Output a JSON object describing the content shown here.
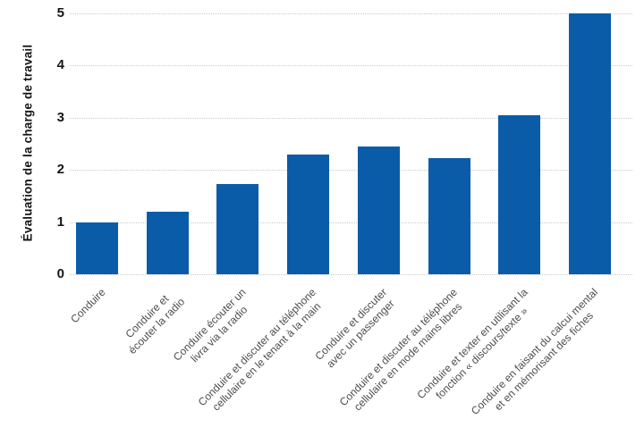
{
  "chart_data": {
    "type": "bar",
    "title": "",
    "xlabel": "",
    "ylabel": "Évaluation de la charge de travail",
    "ylim": [
      0,
      5
    ],
    "yticks": [
      0,
      1,
      2,
      3,
      4,
      5
    ],
    "grid": "horizontal dotted gridlines at each integer tick, no axis spine",
    "legend": "none",
    "categories": [
      "Conduire",
      "Conduire et écouter la radio",
      "Conduire écouter un livra via la radio",
      "Conduire et discuter au téléphone cellulaire en le tenant à la main",
      "Conduire et discuter avec un passenger",
      "Conduire et discuter au téléphone cellulaire en mode mains libres",
      "Conduire et texter en utilisant la fonction « discours/texte »",
      "Conduire en faisant du calcui mental et en mémorisant des fiches"
    ],
    "categories_wrapped": [
      "Conduire",
      "Conduire et\nécouter la radio",
      "Conduire écouter un\nlivra via la radio",
      "Conduire et discuter au téléphone\ncellulaire en le tenant à la main",
      "Conduire et discuter\navec un passenger",
      "Conduire et discuter au téléphone\ncellulaire en mode mains libres",
      "Conduire et texter en utilisant la\nfonction « discours/texte »",
      "Conduire en faisant du calcui mental\net en mémorisant des fiches"
    ],
    "values": [
      1.0,
      1.2,
      1.73,
      2.3,
      2.45,
      2.23,
      3.05,
      5.0
    ]
  },
  "colors": {
    "bar": "#0b5ca8",
    "grid": "#c9c9c9",
    "tick_text": "#161616",
    "category_text": "#4d4d4d",
    "background": "#ffffff"
  }
}
